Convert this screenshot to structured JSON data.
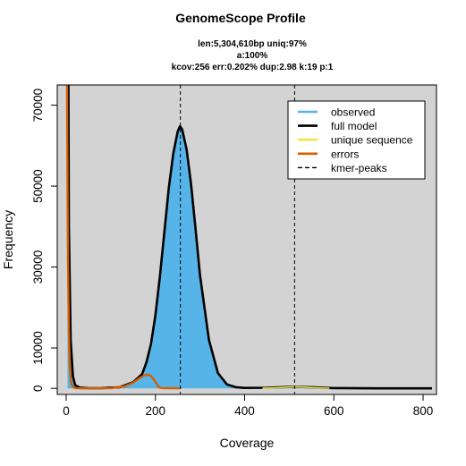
{
  "chart_data": {
    "type": "area",
    "title": "GenomeScope Profile",
    "subtitle_lines": [
      "len:5,304,610bp uniq:97%",
      "a:100%",
      "kcov:256 err:0.202%  dup:2.98  k:19 p:1"
    ],
    "xlabel": "Coverage",
    "ylabel": "Frequency",
    "xlim": [
      -20,
      830
    ],
    "ylim": [
      -1500,
      75000
    ],
    "x_ticks": [
      0,
      200,
      400,
      600,
      800
    ],
    "y_ticks": [
      0,
      10000,
      30000,
      50000,
      70000
    ],
    "grid": false,
    "background": "#d3d3d3",
    "legend": {
      "position": "top-right",
      "entries": [
        {
          "label": "observed",
          "color": "#56b4e9",
          "style": "solid"
        },
        {
          "label": "full model",
          "color": "#000000",
          "style": "solid"
        },
        {
          "label": "unique sequence",
          "color": "#f0e442",
          "style": "solid"
        },
        {
          "label": "errors",
          "color": "#d55e00",
          "style": "solid"
        },
        {
          "label": "kmer-peaks",
          "color": "#000000",
          "style": "dashed"
        }
      ]
    },
    "kmer_peaks": [
      256,
      512
    ],
    "series": [
      {
        "name": "observed",
        "color": "#56b4e9",
        "x": [
          3,
          6,
          10,
          15,
          20,
          30,
          50,
          80,
          120,
          150,
          170,
          180,
          190,
          200,
          210,
          220,
          230,
          240,
          250,
          255,
          260,
          270,
          280,
          290,
          300,
          320,
          340,
          360,
          380,
          400,
          450,
          500,
          512,
          550,
          600,
          700,
          820
        ],
        "y": [
          150000,
          40000,
          12000,
          3000,
          800,
          200,
          50,
          60,
          300,
          1500,
          3500,
          6500,
          11000,
          18000,
          27500,
          38500,
          49500,
          58000,
          63500,
          64800,
          64000,
          59000,
          50500,
          39500,
          28000,
          12000,
          3800,
          1000,
          300,
          120,
          150,
          350,
          380,
          280,
          60,
          5,
          0
        ]
      },
      {
        "name": "full model",
        "color": "#000000",
        "x": [
          3,
          6,
          10,
          15,
          20,
          30,
          50,
          80,
          120,
          150,
          170,
          180,
          190,
          200,
          210,
          220,
          230,
          240,
          250,
          255,
          260,
          270,
          280,
          290,
          300,
          320,
          340,
          360,
          380,
          400,
          450,
          500,
          512,
          550,
          600,
          700,
          820
        ],
        "y": [
          150000,
          40000,
          12000,
          3000,
          800,
          200,
          50,
          60,
          300,
          1500,
          3500,
          6500,
          11000,
          18000,
          27500,
          38500,
          49500,
          58000,
          63500,
          64800,
          64000,
          59000,
          50500,
          39500,
          28000,
          12000,
          3800,
          1000,
          300,
          120,
          150,
          350,
          380,
          280,
          60,
          5,
          0
        ]
      },
      {
        "name": "unique sequence",
        "color": "#f0e442",
        "x": [
          440,
          470,
          500,
          512,
          530,
          560,
          590
        ],
        "y": [
          30,
          150,
          330,
          360,
          320,
          160,
          40
        ]
      },
      {
        "name": "errors",
        "color": "#d55e00",
        "x": [
          0,
          2,
          4,
          6,
          8,
          10,
          12,
          15,
          20,
          30,
          40,
          60,
          100,
          130,
          150,
          165,
          175,
          182,
          190,
          198,
          205,
          210,
          215,
          230,
          255
        ],
        "y": [
          150000,
          70000,
          32000,
          14000,
          5500,
          2300,
          1000,
          350,
          60,
          0,
          0,
          0,
          80,
          500,
          1400,
          2600,
          3200,
          3400,
          3100,
          2000,
          700,
          150,
          60,
          20,
          0
        ]
      }
    ]
  }
}
